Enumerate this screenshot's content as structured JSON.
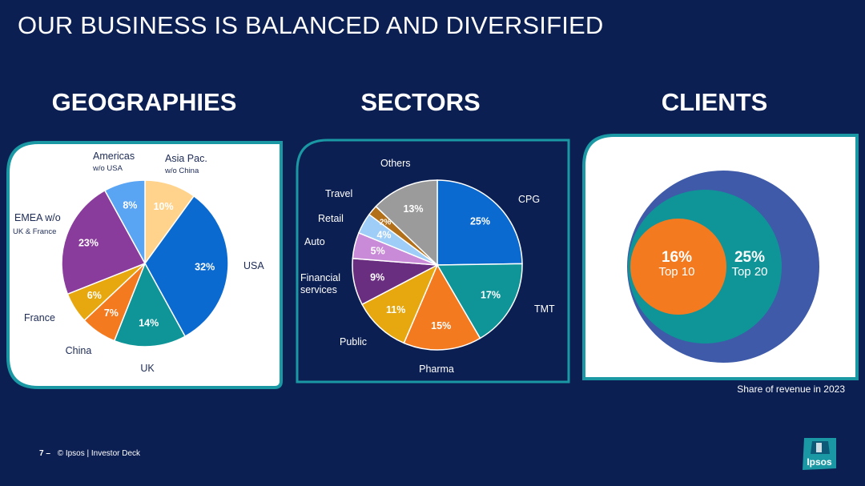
{
  "slide": {
    "title": "OUR BUSINESS IS BALANCED AND DIVERSIFIED",
    "footer_page": "7 –",
    "footer_text": "© Ipsos | Investor Deck",
    "logo_text": "Ipsos",
    "caption": "Share of revenue in 2023"
  },
  "sections": {
    "geographies": "GEOGRAPHIES",
    "sectors": "SECTORS",
    "clients": "CLIENTS"
  },
  "colors": {
    "background": "#0c1f52",
    "panel_border": "#1a98a4"
  },
  "chart_data": [
    {
      "id": "geographies",
      "type": "pie",
      "title": "GEOGRAPHIES",
      "slices": [
        {
          "label": "Asia Pac.",
          "sublabel": "w/o China",
          "value": 10,
          "display": "10%",
          "color": "#ffd38c",
          "labelColor": "#ffffff"
        },
        {
          "label": "USA",
          "sublabel": "",
          "value": 32,
          "display": "32%",
          "color": "#0b6ad0",
          "labelColor": "#ffffff"
        },
        {
          "label": "UK",
          "sublabel": "",
          "value": 14,
          "display": "14%",
          "color": "#0f9598",
          "labelColor": "#ffffff"
        },
        {
          "label": "China",
          "sublabel": "",
          "value": 7,
          "display": "7%",
          "color": "#f47a20",
          "labelColor": "#ffffff"
        },
        {
          "label": "France",
          "sublabel": "",
          "value": 6,
          "display": "6%",
          "color": "#e7a70f",
          "labelColor": "#ffffff"
        },
        {
          "label": "EMEA w/o",
          "sublabel": "UK & France",
          "value": 23,
          "display": "23%",
          "color": "#8a3c9c",
          "labelColor": "#ffffff"
        },
        {
          "label": "Americas",
          "sublabel": "w/o USA",
          "value": 8,
          "display": "8%",
          "color": "#5aa4f4",
          "labelColor": "#ffffff"
        }
      ]
    },
    {
      "id": "sectors",
      "type": "pie",
      "title": "SECTORS",
      "slices": [
        {
          "label": "CPG",
          "value": 25,
          "display": "25%",
          "color": "#0b6ad0"
        },
        {
          "label": "TMT",
          "value": 17,
          "display": "17%",
          "color": "#0f9598"
        },
        {
          "label": "Pharma",
          "value": 15,
          "display": "15%",
          "color": "#f47a20"
        },
        {
          "label": "Public",
          "value": 11,
          "display": "11%",
          "color": "#e7a70f"
        },
        {
          "label": "Financial services",
          "value": 9,
          "display": "9%",
          "color": "#6a2e80"
        },
        {
          "label": "Auto",
          "value": 5,
          "display": "5%",
          "color": "#c98ad8"
        },
        {
          "label": "Retail",
          "value": 4,
          "display": "4%",
          "color": "#9ecdf7"
        },
        {
          "label": "Travel",
          "value": 2,
          "display": "2%",
          "color": "#b3701a"
        },
        {
          "label": "Others",
          "value": 13,
          "display": "13%",
          "color": "#9b9b9b"
        }
      ]
    },
    {
      "id": "clients",
      "type": "nested-circles",
      "title": "CLIENTS",
      "caption": "Share of revenue in 2023",
      "circles": [
        {
          "label": "Top 20",
          "value": 25,
          "display": "25%",
          "color": "#0f9598"
        },
        {
          "label": "Top 10",
          "value": 16,
          "display": "16%",
          "color": "#f47a20"
        }
      ],
      "outer_color": "#3e5aa8"
    }
  ]
}
